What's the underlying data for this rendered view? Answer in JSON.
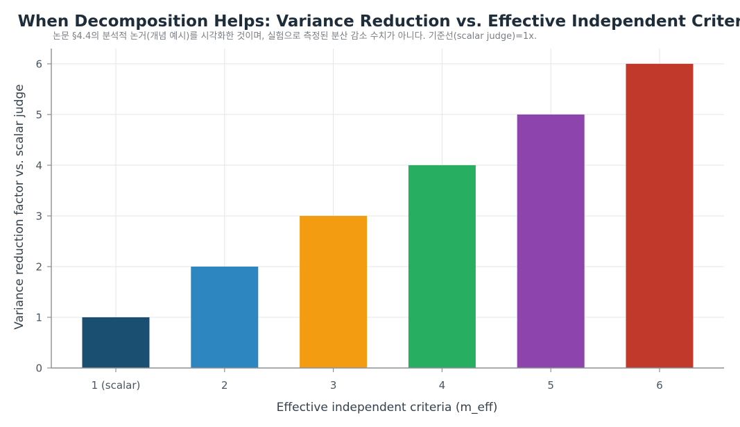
{
  "chart_data": {
    "type": "bar",
    "title": "When Decomposition Helps: Variance Reduction vs. Effective Independent Criteria",
    "subtitle": "논문 §4.4의 분석적 논거(개념 예시)를 시각화한 것이며, 실험으로 측정된 분산 감소 수치가 아니다. 기준선(scalar judge)=1x.",
    "xlabel": "Effective independent criteria (m_eff)",
    "ylabel": "Variance reduction factor vs. scalar judge",
    "categories": [
      "1 (scalar)",
      "2",
      "3",
      "4",
      "5",
      "6"
    ],
    "values": [
      1,
      2,
      3,
      4,
      5,
      6
    ],
    "colors": [
      "#1b4f72",
      "#2e86c1",
      "#f39c12",
      "#27ae60",
      "#8e44ad",
      "#c0392b"
    ],
    "ylim": [
      0,
      6.3
    ],
    "yticks": [
      0,
      1,
      2,
      3,
      4,
      5,
      6
    ],
    "grid": true,
    "legend": "none"
  }
}
